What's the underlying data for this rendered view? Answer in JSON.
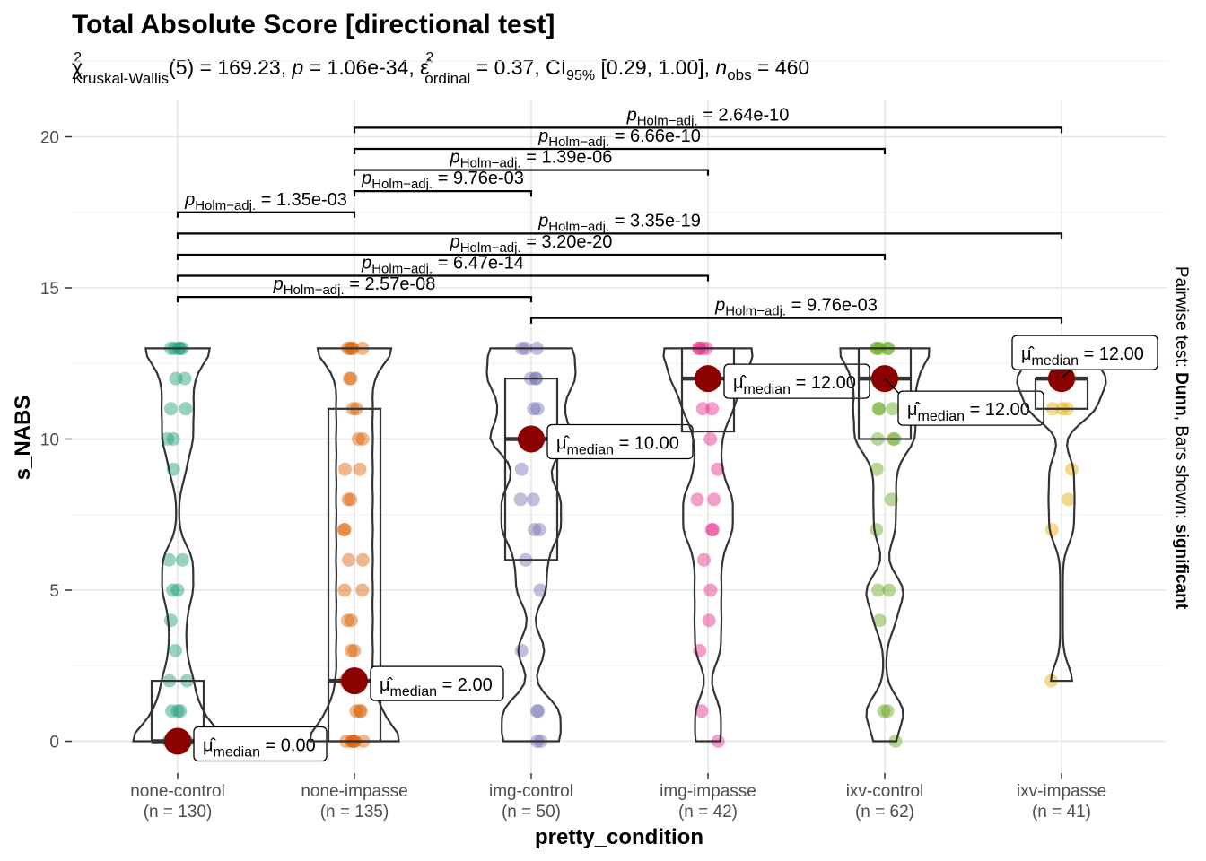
{
  "chart_data": {
    "type": "violin-box-scatter",
    "title": "Total Absolute Score [directional test]",
    "subtitle": {
      "stat_name": "Kruskal-Wallis",
      "df": "5",
      "statistic": "169.23",
      "p": "1.06e-34",
      "effect_size": "0.37",
      "ci_label": "95%",
      "ci": "[0.29, 1.00]",
      "n_obs": "460"
    },
    "xlabel": "pretty_condition",
    "ylabel": "s_NABS",
    "ylim": [
      0,
      20
    ],
    "yticks": [
      "0",
      "5",
      "10",
      "15",
      "20"
    ],
    "caption_prefix": "Pairwise test: ",
    "caption_test": "Dunn",
    "caption_middle": ", Bars shown: ",
    "caption_bars": "significant",
    "median_label_prefix": "median",
    "pair_label_prefix": "Holm−adj.",
    "categories": [
      {
        "name": "none-control",
        "n": "(n = 130)",
        "color": "#1B9E77",
        "median": 0,
        "q1": 0,
        "q3": 2,
        "median_label": "= 0.00",
        "points": [
          0,
          0,
          0,
          0,
          0,
          0,
          0,
          1,
          1,
          1,
          2,
          2,
          3,
          4,
          5,
          5,
          6,
          6,
          9,
          10,
          10,
          11,
          11,
          12,
          12,
          13,
          13,
          13,
          13,
          13
        ]
      },
      {
        "name": "none-impasse",
        "n": "(n = 135)",
        "color": "#D95F02",
        "median": 2,
        "q1": 0,
        "q3": 11,
        "median_label": "= 2.00",
        "points": [
          0,
          0,
          0,
          0,
          0,
          0,
          1,
          1,
          1,
          2,
          2,
          3,
          3,
          4,
          4,
          5,
          5,
          6,
          6,
          7,
          7,
          8,
          8,
          9,
          9,
          10,
          10,
          11,
          11,
          12,
          12,
          13,
          13,
          13,
          13,
          13
        ]
      },
      {
        "name": "img-control",
        "n": "(n = 50)",
        "color": "#7570B3",
        "median": 10,
        "q1": 6,
        "q3": 12,
        "median_label": "= 10.00",
        "points": [
          0,
          0,
          1,
          1,
          3,
          5,
          6,
          7,
          7,
          8,
          8,
          9,
          10,
          10,
          10,
          11,
          11,
          12,
          12,
          12,
          13,
          13,
          13
        ]
      },
      {
        "name": "img-impasse",
        "n": "(n = 42)",
        "color": "#E7298A",
        "median": 12,
        "q1": 10.25,
        "q3": 13,
        "median_label": "= 12.00",
        "points": [
          0,
          1,
          3,
          4,
          5,
          6,
          7,
          7,
          8,
          8,
          9,
          10,
          11,
          11,
          12,
          12,
          12,
          13,
          13,
          13,
          13
        ]
      },
      {
        "name": "ixv-control",
        "n": "(n = 62)",
        "color": "#66A61E",
        "median": 12,
        "q1": 10,
        "q3": 13,
        "median_label": "= 12.00",
        "points": [
          0,
          1,
          1,
          4,
          5,
          5,
          7,
          8,
          9,
          10,
          10,
          10,
          11,
          11,
          11,
          12,
          12,
          12,
          13,
          13,
          13,
          13,
          13
        ]
      },
      {
        "name": "ixv-impasse",
        "n": "(n = 41)",
        "color": "#E6AB02",
        "median": 12,
        "q1": 11,
        "q3": 12,
        "median_label": "= 12.00",
        "points": [
          2,
          7,
          8,
          9,
          11,
          11,
          11,
          12,
          12,
          12,
          12,
          13,
          13
        ]
      }
    ],
    "comparisons": [
      {
        "from": 0,
        "to": 2,
        "y": 14.7,
        "p": "= 2.57e-08"
      },
      {
        "from": 0,
        "to": 3,
        "y": 15.4,
        "p": "= 6.47e-14"
      },
      {
        "from": 0,
        "to": 4,
        "y": 16.1,
        "p": "= 3.20e-20"
      },
      {
        "from": 0,
        "to": 5,
        "y": 16.8,
        "p": "= 3.35e-19"
      },
      {
        "from": 0,
        "to": 1,
        "y": 17.5,
        "p": "= 1.35e-03"
      },
      {
        "from": 1,
        "to": 2,
        "y": 18.2,
        "p": "= 9.76e-03"
      },
      {
        "from": 1,
        "to": 3,
        "y": 18.9,
        "p": "= 1.39e-06"
      },
      {
        "from": 1,
        "to": 4,
        "y": 19.6,
        "p": "= 6.66e-10"
      },
      {
        "from": 1,
        "to": 5,
        "y": 20.3,
        "p": "= 2.64e-10"
      },
      {
        "from": 2,
        "to": 5,
        "y": 14.0,
        "p": "= 9.76e-03"
      }
    ]
  }
}
